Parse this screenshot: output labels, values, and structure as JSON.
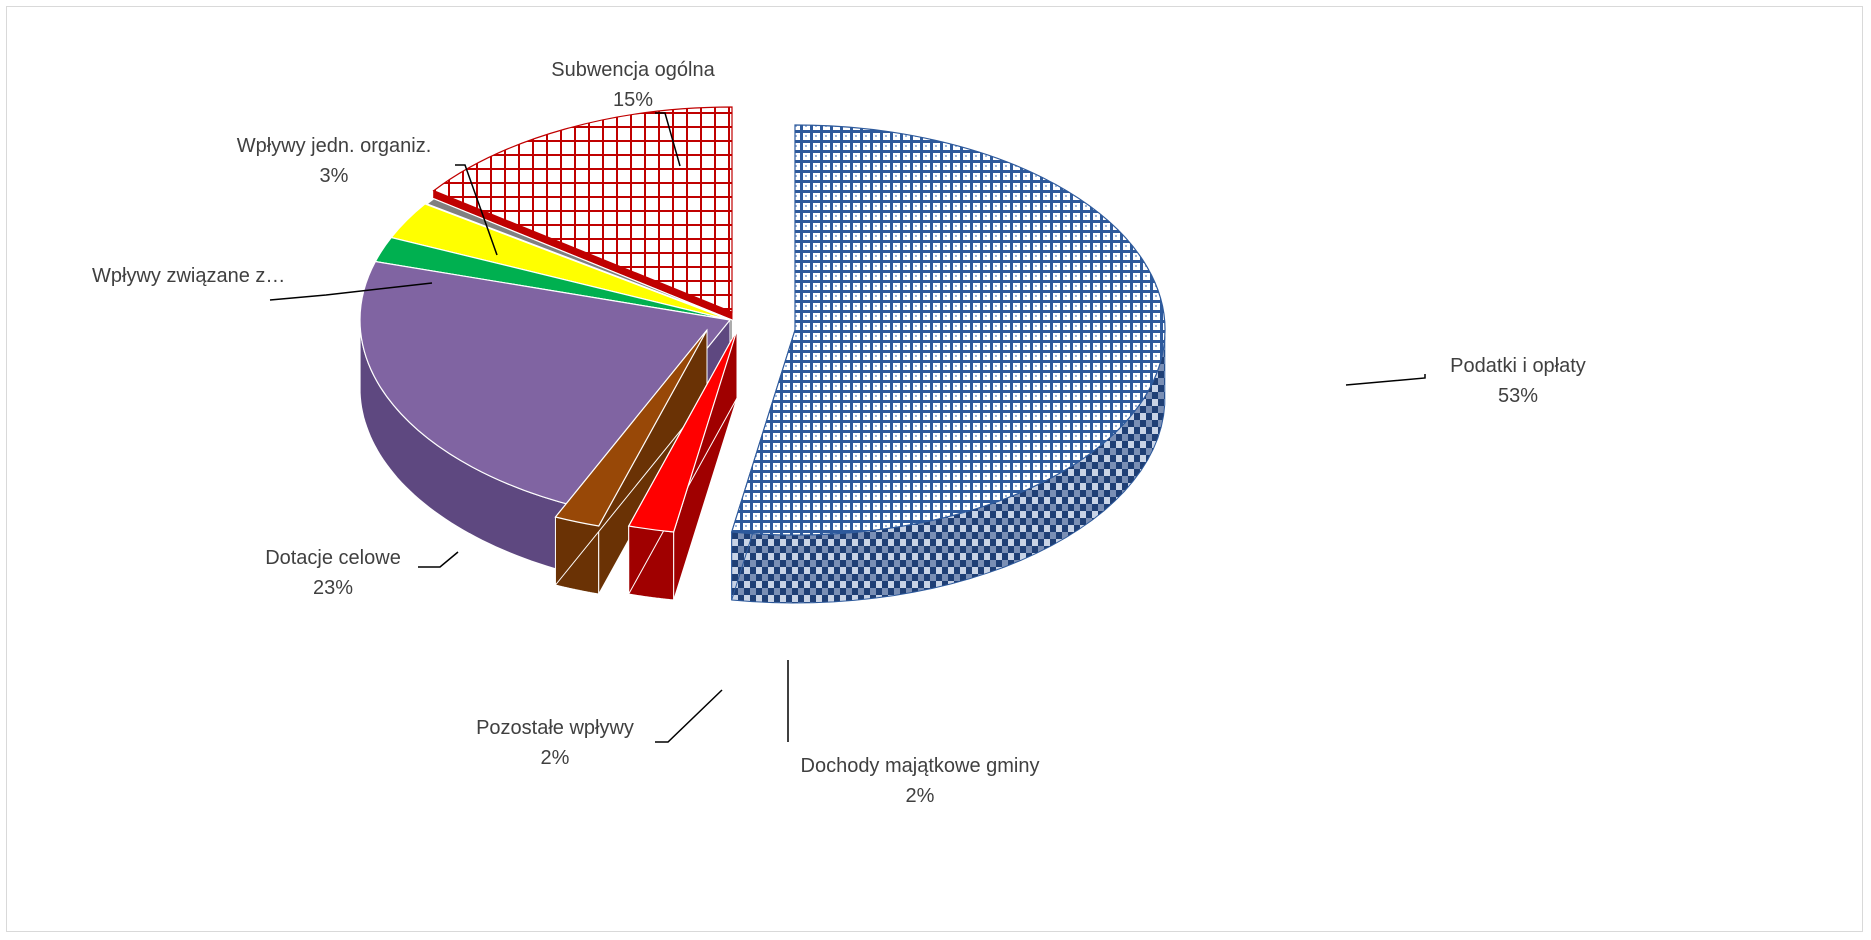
{
  "chart_data": {
    "type": "pie",
    "style": "3d-exploded",
    "title": "",
    "legend": "none",
    "slices": [
      {
        "name": "Podatki i opłaty",
        "pct_label": "53%",
        "value": 53,
        "color": "#2e5a9c",
        "pattern": "check-blue"
      },
      {
        "name": "Dochody  majątkowe gminy",
        "pct_label": "2%",
        "value": 2,
        "color": "#ff0000"
      },
      {
        "name": "Pozostałe wpływy",
        "pct_label": "2%",
        "value": 2,
        "color": "#984807"
      },
      {
        "name": "Dotacje celowe",
        "pct_label": "23%",
        "value": 23,
        "color": "#8064a2"
      },
      {
        "name": "Wpływy związane z…",
        "pct_label": "",
        "value": 2,
        "color": "#00b050"
      },
      {
        "name": "Wpływy jedn. organiz.",
        "pct_label": "3%",
        "value": 3,
        "color": "#ffff00"
      },
      {
        "name": "",
        "pct_label": "",
        "value": 0.5,
        "color": "#808080"
      },
      {
        "name": "Subwencja ogólna",
        "pct_label": "15%",
        "value": 15,
        "color": "#c00000",
        "pattern": "grid-red"
      }
    ]
  }
}
